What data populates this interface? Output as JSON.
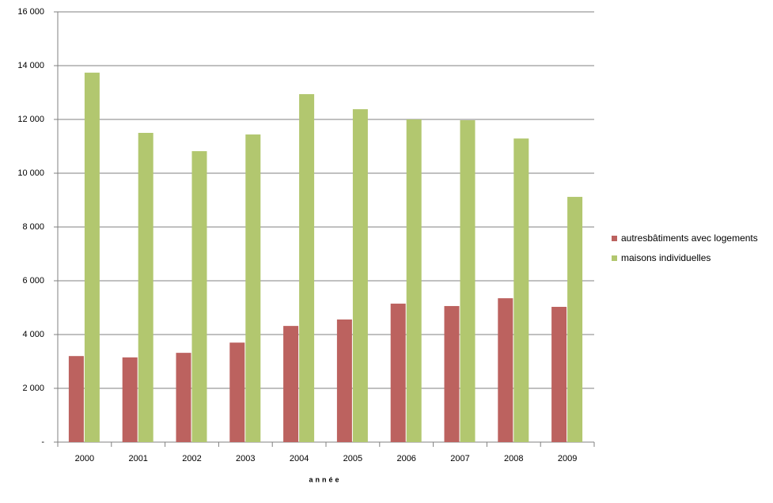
{
  "chart_data": {
    "type": "bar",
    "x_label": "année",
    "categories": [
      "2000",
      "2001",
      "2002",
      "2003",
      "2004",
      "2005",
      "2006",
      "2007",
      "2008",
      "2009"
    ],
    "series": [
      {
        "name": "autresbâtiments avec logements",
        "color": "#bc625f",
        "values": [
          3200,
          3150,
          3320,
          3700,
          4320,
          4560,
          5150,
          5060,
          5350,
          5030
        ]
      },
      {
        "name": "maisons individuelles",
        "color": "#b2c76f",
        "values": [
          13740,
          11500,
          10820,
          11440,
          12940,
          12380,
          12000,
          11970,
          11290,
          9120
        ]
      }
    ],
    "ylim": [
      0,
      16000
    ],
    "yticks": [
      {
        "value": 0,
        "label": "-"
      },
      {
        "value": 2000,
        "label": "2 000"
      },
      {
        "value": 4000,
        "label": "4 000"
      },
      {
        "value": 6000,
        "label": "6 000"
      },
      {
        "value": 8000,
        "label": "8 000"
      },
      {
        "value": 10000,
        "label": "10 000"
      },
      {
        "value": 12000,
        "label": "12 000"
      },
      {
        "value": 14000,
        "label": "14 000"
      },
      {
        "value": 16000,
        "label": "16 000"
      }
    ],
    "grid": true,
    "legend": "right"
  }
}
